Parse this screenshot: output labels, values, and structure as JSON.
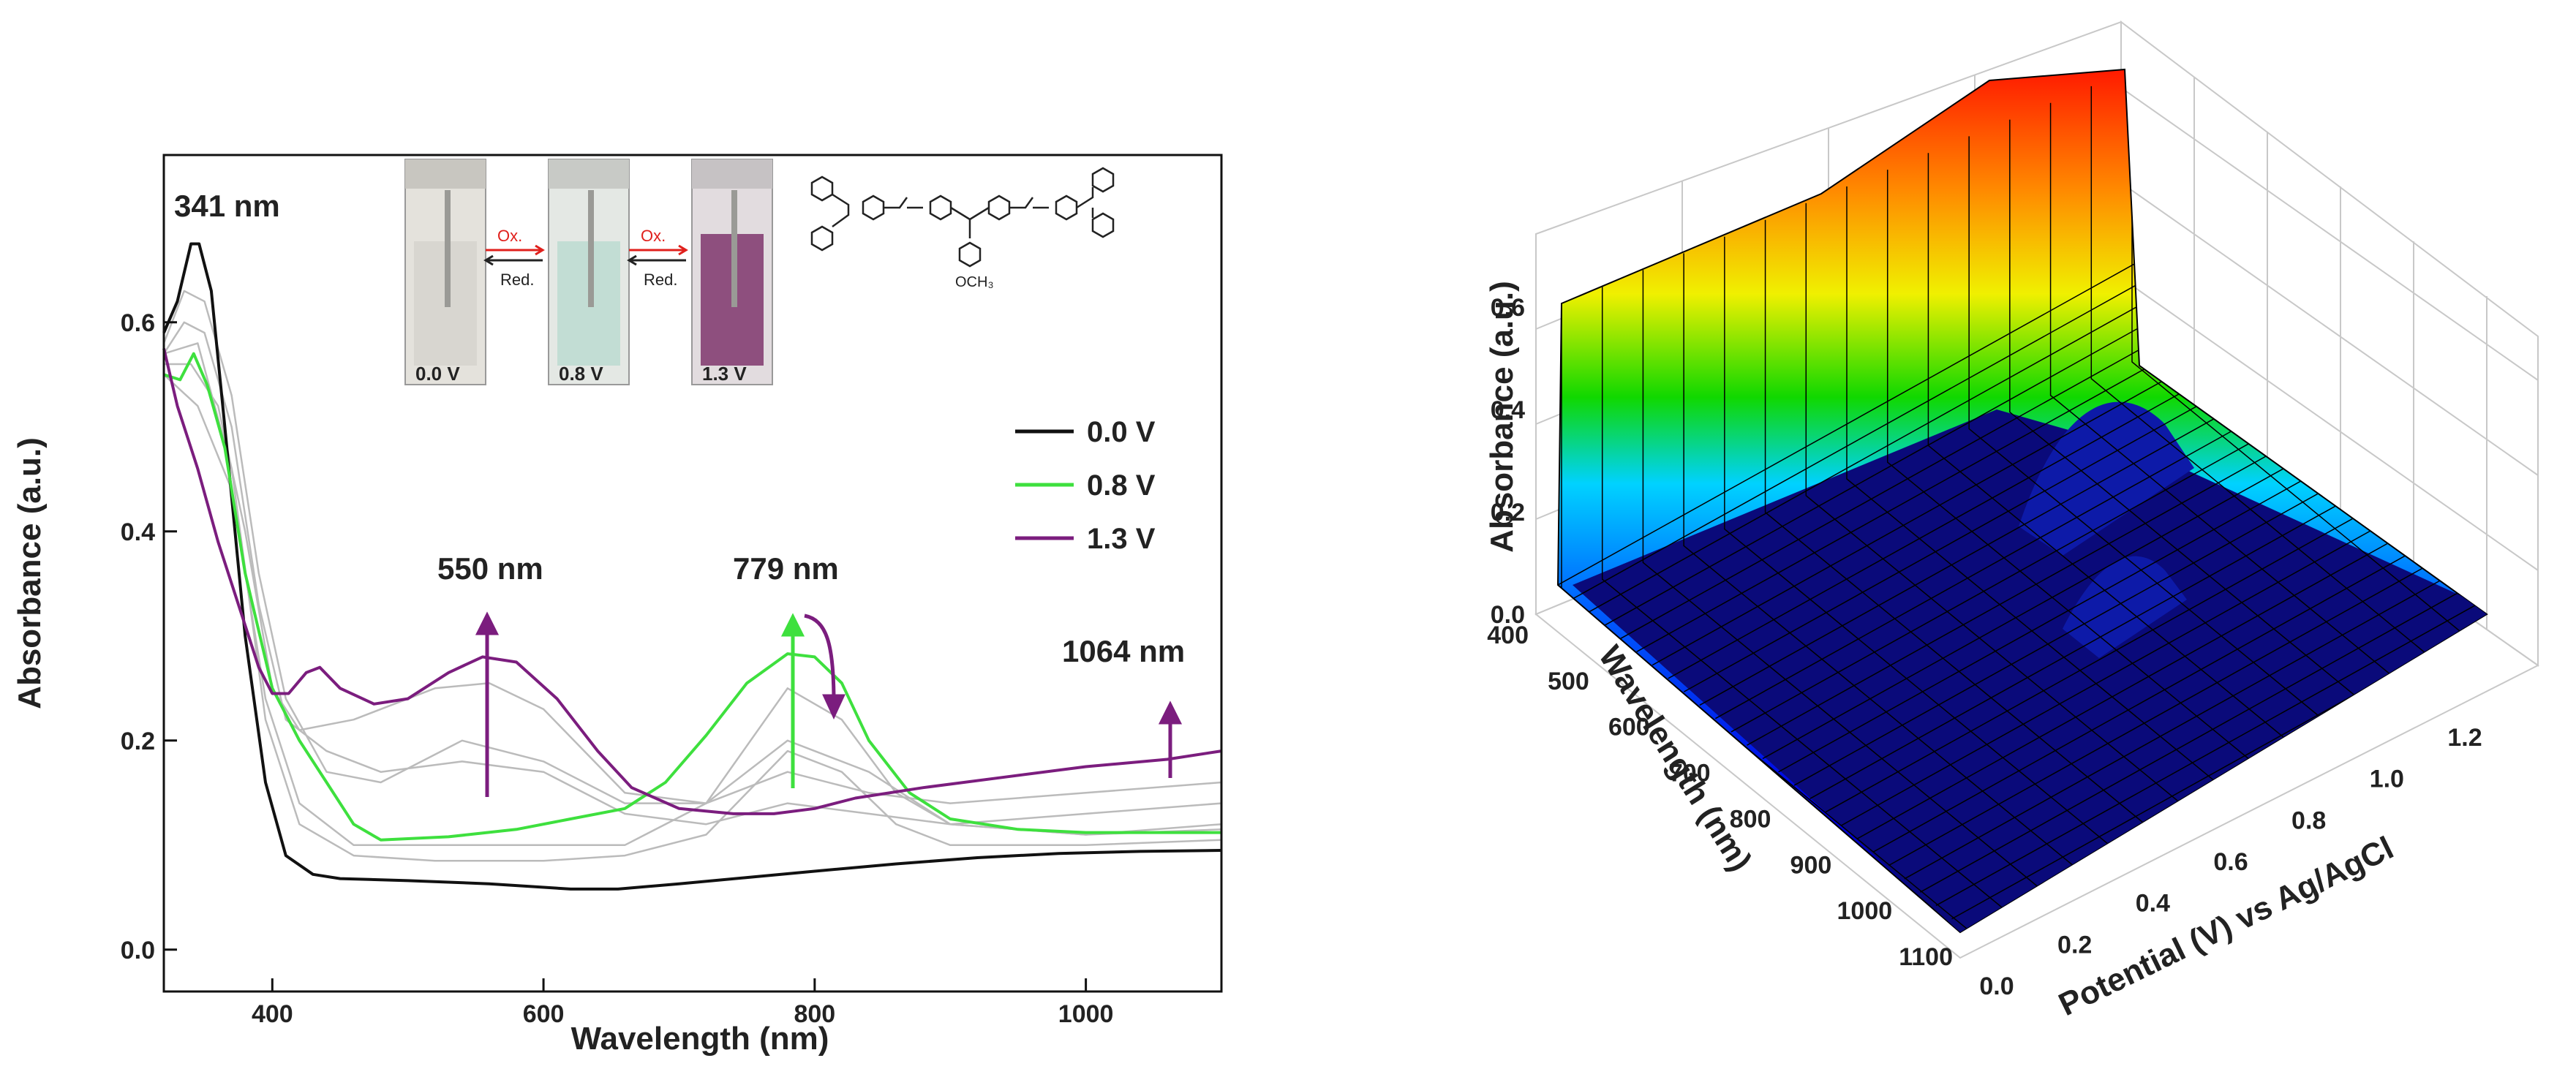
{
  "chart_data": [
    {
      "type": "line",
      "title": "",
      "xlabel": "Wavelength (nm)",
      "ylabel": "Absorbance (a.u.)",
      "xlim": [
        320,
        1100
      ],
      "ylim": [
        -0.04,
        0.76
      ],
      "xticks": [
        "400",
        "600",
        "800",
        "1000"
      ],
      "yticks": [
        "0.0",
        "0.2",
        "0.4",
        "0.6"
      ],
      "legend_position": "right",
      "series": [
        {
          "name": "0.0 V",
          "color": "#111111",
          "points": [
            [
              320,
              0.59
            ],
            [
              330,
              0.62
            ],
            [
              340,
              0.675
            ],
            [
              346,
              0.675
            ],
            [
              355,
              0.63
            ],
            [
              365,
              0.5
            ],
            [
              380,
              0.3
            ],
            [
              395,
              0.16
            ],
            [
              410,
              0.09
            ],
            [
              430,
              0.072
            ],
            [
              450,
              0.068
            ],
            [
              500,
              0.066
            ],
            [
              560,
              0.063
            ],
            [
              620,
              0.058
            ],
            [
              655,
              0.058
            ],
            [
              700,
              0.063
            ],
            [
              750,
              0.069
            ],
            [
              800,
              0.075
            ],
            [
              860,
              0.082
            ],
            [
              920,
              0.088
            ],
            [
              980,
              0.092
            ],
            [
              1040,
              0.094
            ],
            [
              1100,
              0.095
            ]
          ]
        },
        {
          "name": "0.8 V",
          "color": "#3ee03e",
          "points": [
            [
              320,
              0.55
            ],
            [
              332,
              0.545
            ],
            [
              342,
              0.57
            ],
            [
              352,
              0.54
            ],
            [
              365,
              0.48
            ],
            [
              380,
              0.36
            ],
            [
              400,
              0.25
            ],
            [
              420,
              0.2
            ],
            [
              440,
              0.16
            ],
            [
              460,
              0.12
            ],
            [
              480,
              0.105
            ],
            [
              530,
              0.108
            ],
            [
              580,
              0.115
            ],
            [
              620,
              0.125
            ],
            [
              660,
              0.135
            ],
            [
              690,
              0.16
            ],
            [
              720,
              0.205
            ],
            [
              750,
              0.255
            ],
            [
              780,
              0.283
            ],
            [
              800,
              0.28
            ],
            [
              820,
              0.255
            ],
            [
              840,
              0.2
            ],
            [
              870,
              0.15
            ],
            [
              900,
              0.125
            ],
            [
              950,
              0.115
            ],
            [
              1000,
              0.112
            ],
            [
              1100,
              0.112
            ]
          ]
        },
        {
          "name": "1.3 V",
          "color": "#7b1d7e",
          "points": [
            [
              320,
              0.575
            ],
            [
              330,
              0.52
            ],
            [
              345,
              0.46
            ],
            [
              360,
              0.39
            ],
            [
              375,
              0.33
            ],
            [
              390,
              0.27
            ],
            [
              400,
              0.245
            ],
            [
              412,
              0.245
            ],
            [
              425,
              0.265
            ],
            [
              435,
              0.27
            ],
            [
              450,
              0.25
            ],
            [
              475,
              0.235
            ],
            [
              500,
              0.24
            ],
            [
              530,
              0.265
            ],
            [
              555,
              0.28
            ],
            [
              580,
              0.275
            ],
            [
              610,
              0.24
            ],
            [
              640,
              0.19
            ],
            [
              665,
              0.155
            ],
            [
              700,
              0.135
            ],
            [
              740,
              0.13
            ],
            [
              770,
              0.13
            ],
            [
              800,
              0.135
            ],
            [
              830,
              0.145
            ],
            [
              880,
              0.155
            ],
            [
              940,
              0.165
            ],
            [
              1000,
              0.175
            ],
            [
              1060,
              0.182
            ],
            [
              1100,
              0.19
            ]
          ]
        },
        {
          "name": "",
          "color": "#bbbbbb",
          "points": [
            [
              320,
              0.57
            ],
            [
              335,
              0.6
            ],
            [
              350,
              0.59
            ],
            [
              370,
              0.5
            ],
            [
              390,
              0.33
            ],
            [
              410,
              0.22
            ],
            [
              440,
              0.19
            ],
            [
              480,
              0.17
            ],
            [
              540,
              0.18
            ],
            [
              600,
              0.17
            ],
            [
              660,
              0.13
            ],
            [
              720,
              0.12
            ],
            [
              780,
              0.14
            ],
            [
              840,
              0.13
            ],
            [
              900,
              0.12
            ],
            [
              1000,
              0.13
            ],
            [
              1100,
              0.14
            ]
          ]
        },
        {
          "name": "",
          "color": "#bbbbbb",
          "points": [
            [
              320,
              0.58
            ],
            [
              335,
              0.63
            ],
            [
              350,
              0.62
            ],
            [
              370,
              0.53
            ],
            [
              390,
              0.36
            ],
            [
              410,
              0.24
            ],
            [
              440,
              0.17
            ],
            [
              480,
              0.16
            ],
            [
              540,
              0.2
            ],
            [
              600,
              0.18
            ],
            [
              660,
              0.14
            ],
            [
              720,
              0.14
            ],
            [
              780,
              0.2
            ],
            [
              840,
              0.17
            ],
            [
              900,
              0.12
            ],
            [
              1000,
              0.11
            ],
            [
              1100,
              0.12
            ]
          ]
        },
        {
          "name": "",
          "color": "#bbbbbb",
          "points": [
            [
              320,
              0.56
            ],
            [
              340,
              0.56
            ],
            [
              360,
              0.52
            ],
            [
              380,
              0.4
            ],
            [
              400,
              0.25
            ],
            [
              420,
              0.21
            ],
            [
              460,
              0.22
            ],
            [
              520,
              0.25
            ],
            [
              560,
              0.255
            ],
            [
              600,
              0.23
            ],
            [
              660,
              0.15
            ],
            [
              720,
              0.14
            ],
            [
              780,
              0.17
            ],
            [
              840,
              0.15
            ],
            [
              900,
              0.14
            ],
            [
              1000,
              0.15
            ],
            [
              1100,
              0.16
            ]
          ]
        },
        {
          "name": "",
          "color": "#bbbbbb",
          "points": [
            [
              320,
              0.55
            ],
            [
              345,
              0.52
            ],
            [
              370,
              0.44
            ],
            [
              395,
              0.24
            ],
            [
              420,
              0.14
            ],
            [
              460,
              0.1
            ],
            [
              520,
              0.1
            ],
            [
              600,
              0.1
            ],
            [
              660,
              0.1
            ],
            [
              720,
              0.14
            ],
            [
              780,
              0.25
            ],
            [
              820,
              0.22
            ],
            [
              860,
              0.15
            ],
            [
              900,
              0.12
            ],
            [
              1000,
              0.11
            ],
            [
              1100,
              0.115
            ]
          ]
        },
        {
          "name": "",
          "color": "#bbbbbb",
          "points": [
            [
              320,
              0.57
            ],
            [
              345,
              0.58
            ],
            [
              370,
              0.46
            ],
            [
              395,
              0.22
            ],
            [
              420,
              0.12
            ],
            [
              460,
              0.09
            ],
            [
              520,
              0.085
            ],
            [
              600,
              0.085
            ],
            [
              660,
              0.09
            ],
            [
              720,
              0.11
            ],
            [
              780,
              0.19
            ],
            [
              820,
              0.17
            ],
            [
              860,
              0.12
            ],
            [
              900,
              0.1
            ],
            [
              1000,
              0.1
            ],
            [
              1100,
              0.105
            ]
          ]
        }
      ],
      "annotations": [
        "341 nm",
        "550 nm",
        "779 nm",
        "1064 nm"
      ],
      "inset": {
        "cuvette_labels": [
          "0.0 V",
          "0.8 V",
          "1.3 V"
        ],
        "oxidation_label": "Ox.",
        "reduction_label": "Red.",
        "cuvette_colors": [
          "#d8d6d0",
          "#c2ddd4",
          "#8e4f7e"
        ],
        "structure_label": "OCH₃"
      }
    },
    {
      "type": "surface",
      "title": "",
      "xlabel": "Wavelength (nm)",
      "ylabel": "Potential (V) vs Ag/AgCl",
      "zlabel": "Absorbance (a.u.)",
      "xticks": [
        "400",
        "500",
        "600",
        "700",
        "800",
        "900",
        "1000",
        "1100"
      ],
      "yticks": [
        "0.0",
        "0.2",
        "0.4",
        "0.6",
        "0.8",
        "1.0",
        "1.2"
      ],
      "zticks": [
        "0.0",
        "0.2",
        "0.4",
        "0.6"
      ],
      "colormap": [
        "#00008b",
        "#0000ff",
        "#00c8ff",
        "#00e400",
        "#ffff00",
        "#ff8c00",
        "#ff0000"
      ]
    }
  ]
}
